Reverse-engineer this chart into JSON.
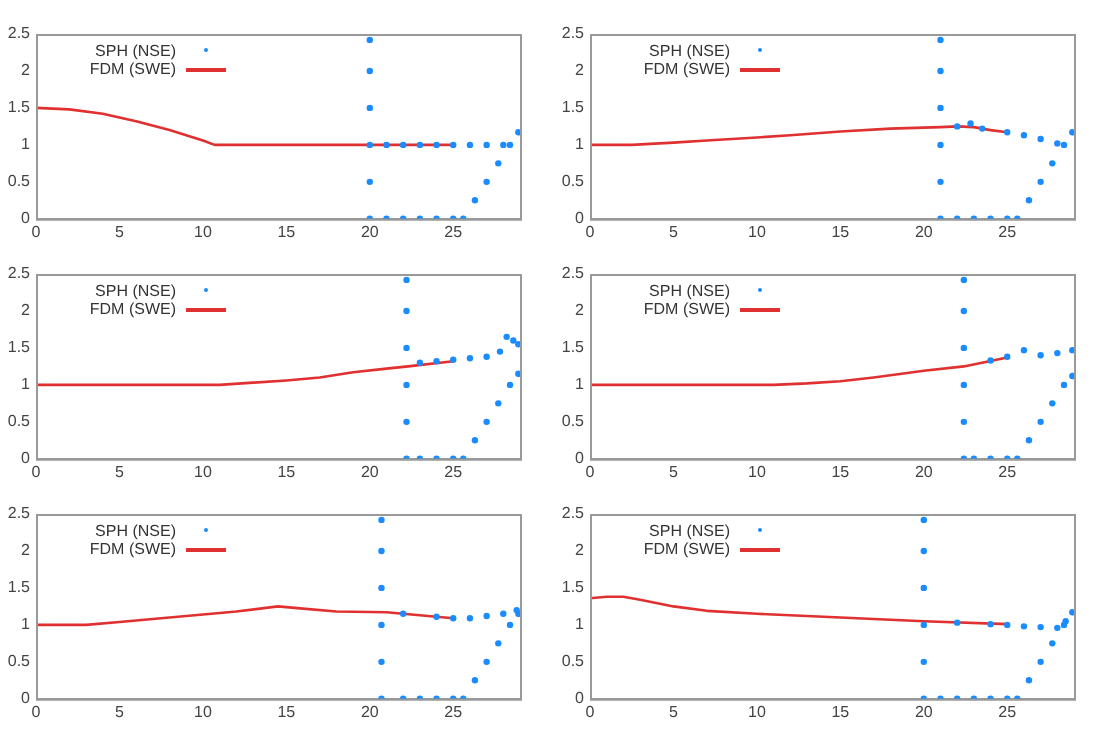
{
  "chart_data": [
    {
      "type": "line",
      "xlim": [
        0,
        29
      ],
      "xticks": [
        0,
        5,
        10,
        15,
        20,
        25
      ],
      "ylim": [
        0,
        2.5
      ],
      "yticks": [
        0,
        0.5,
        1,
        1.5,
        2,
        2.5
      ],
      "grid": false,
      "legend": "top left",
      "series": [
        {
          "name": "SPH (NSE)",
          "type": "scatter",
          "marker": "circle",
          "color": "#1a8cff",
          "x": [
            20,
            20,
            20,
            20,
            20,
            20,
            21,
            22,
            23,
            24,
            25,
            26,
            27,
            28,
            21,
            22,
            23,
            24,
            25,
            25.6,
            26.3,
            27,
            27.7,
            28.4,
            28.9
          ],
          "values": [
            0,
            0.5,
            1,
            1.5,
            2,
            2.42,
            1,
            1,
            1,
            1,
            1,
            1,
            1,
            1,
            0,
            0,
            0,
            0,
            0,
            0,
            0.25,
            0.5,
            0.75,
            1,
            1.17
          ]
        },
        {
          "name": "FDM (SWE)",
          "type": "line",
          "marker": "none",
          "color": "#e03030",
          "x": [
            0,
            2,
            4,
            6,
            8,
            10,
            10.7,
            15,
            20,
            25
          ],
          "values": [
            1.5,
            1.48,
            1.42,
            1.32,
            1.2,
            1.06,
            1,
            1,
            1,
            1
          ]
        }
      ]
    },
    {
      "type": "line",
      "xlim": [
        0,
        29
      ],
      "xticks": [
        0,
        5,
        10,
        15,
        20,
        25
      ],
      "ylim": [
        0,
        2.5
      ],
      "yticks": [
        0,
        0.5,
        1,
        1.5,
        2,
        2.5
      ],
      "grid": false,
      "legend": "top left",
      "series": [
        {
          "name": "SPH (NSE)",
          "type": "scatter",
          "marker": "circle",
          "color": "#1a8cff",
          "x": [
            21,
            21,
            21,
            21,
            21,
            21,
            22,
            22.8,
            23.5,
            25,
            26,
            27,
            28,
            22,
            23,
            24,
            25,
            25.6,
            26.3,
            27,
            27.7,
            28.4,
            28.9
          ],
          "values": [
            0,
            0.5,
            1,
            1.5,
            2,
            2.42,
            1.25,
            1.29,
            1.22,
            1.17,
            1.13,
            1.08,
            1.02,
            0,
            0,
            0,
            0,
            0,
            0.25,
            0.5,
            0.75,
            1,
            1.17
          ]
        },
        {
          "name": "FDM (SWE)",
          "type": "line",
          "marker": "none",
          "color": "#e03030",
          "x": [
            0,
            2.5,
            5,
            7,
            10,
            12,
            15,
            18,
            21,
            22,
            23,
            24,
            25
          ],
          "values": [
            1,
            1,
            1.03,
            1.06,
            1.1,
            1.13,
            1.18,
            1.22,
            1.24,
            1.25,
            1.24,
            1.2,
            1.17
          ]
        }
      ]
    },
    {
      "type": "line",
      "xlim": [
        0,
        29
      ],
      "xticks": [
        0,
        5,
        10,
        15,
        20,
        25
      ],
      "ylim": [
        0,
        2.5
      ],
      "yticks": [
        0,
        0.5,
        1,
        1.5,
        2,
        2.5
      ],
      "grid": false,
      "legend": "top left",
      "series": [
        {
          "name": "SPH (NSE)",
          "type": "scatter",
          "marker": "circle",
          "color": "#1a8cff",
          "x": [
            22.2,
            22.2,
            22.2,
            22.2,
            22.2,
            22.2,
            23,
            24,
            25,
            26,
            27,
            27.8,
            28.2,
            28.6,
            28.9,
            23,
            24,
            25,
            25.6,
            26.3,
            27,
            27.7,
            28.4,
            28.9
          ],
          "values": [
            0,
            0.5,
            1,
            1.5,
            2,
            2.42,
            1.3,
            1.32,
            1.34,
            1.36,
            1.38,
            1.45,
            1.65,
            1.6,
            1.55,
            0,
            0,
            0,
            0,
            0.25,
            0.5,
            0.75,
            1,
            1.15
          ]
        },
        {
          "name": "FDM (SWE)",
          "type": "line",
          "marker": "none",
          "color": "#e03030",
          "x": [
            0,
            5,
            10,
            11,
            13,
            15,
            17,
            19,
            21,
            22.3,
            25
          ],
          "values": [
            1,
            1,
            1,
            1,
            1.03,
            1.06,
            1.1,
            1.17,
            1.22,
            1.25,
            1.32
          ]
        }
      ]
    },
    {
      "type": "line",
      "xlim": [
        0,
        29
      ],
      "xticks": [
        0,
        5,
        10,
        15,
        20,
        25
      ],
      "ylim": [
        0,
        2.5
      ],
      "yticks": [
        0,
        0.5,
        1,
        1.5,
        2,
        2.5
      ],
      "grid": false,
      "legend": "top left",
      "series": [
        {
          "name": "SPH (NSE)",
          "type": "scatter",
          "marker": "circle",
          "color": "#1a8cff",
          "x": [
            22.4,
            22.4,
            22.4,
            22.4,
            22.4,
            22.4,
            24,
            25,
            26,
            27,
            28,
            28.9,
            23,
            24,
            25,
            25.6,
            26.3,
            27,
            27.7,
            28.4,
            28.9
          ],
          "values": [
            0,
            0.5,
            1,
            1.5,
            2,
            2.42,
            1.33,
            1.38,
            1.47,
            1.4,
            1.43,
            1.47,
            0,
            0,
            0,
            0,
            0.25,
            0.5,
            0.75,
            1,
            1.12
          ]
        },
        {
          "name": "FDM (SWE)",
          "type": "line",
          "marker": "none",
          "color": "#e03030",
          "x": [
            0,
            11,
            13,
            15,
            17,
            20,
            22.4,
            25
          ],
          "values": [
            1,
            1,
            1.02,
            1.05,
            1.1,
            1.19,
            1.25,
            1.37
          ]
        }
      ]
    },
    {
      "type": "line",
      "xlim": [
        0,
        29
      ],
      "xticks": [
        0,
        5,
        10,
        15,
        20,
        25
      ],
      "ylim": [
        0,
        2.5
      ],
      "yticks": [
        0,
        0.5,
        1,
        1.5,
        2,
        2.5
      ],
      "grid": false,
      "legend": "top left",
      "series": [
        {
          "name": "SPH (NSE)",
          "type": "scatter",
          "marker": "circle",
          "color": "#1a8cff",
          "x": [
            20.7,
            20.7,
            20.7,
            20.7,
            20.7,
            20.7,
            22,
            24,
            25,
            26,
            27,
            28,
            28.8,
            22,
            23,
            24,
            25,
            25.6,
            26.3,
            27,
            27.7,
            28.4,
            28.9
          ],
          "values": [
            0,
            0.5,
            1,
            1.5,
            2,
            2.42,
            1.15,
            1.11,
            1.09,
            1.09,
            1.12,
            1.15,
            1.2,
            0,
            0,
            0,
            0,
            0,
            0.25,
            0.5,
            0.75,
            1,
            1.15
          ]
        },
        {
          "name": "FDM (SWE)",
          "type": "line",
          "marker": "none",
          "color": "#e03030",
          "x": [
            0,
            3,
            5,
            8,
            11,
            12,
            14.5,
            16,
            18,
            21,
            23,
            25
          ],
          "values": [
            1,
            1,
            1.04,
            1.1,
            1.16,
            1.18,
            1.25,
            1.22,
            1.18,
            1.17,
            1.13,
            1.09
          ]
        }
      ]
    },
    {
      "type": "line",
      "xlim": [
        0,
        29
      ],
      "xticks": [
        0,
        5,
        10,
        15,
        20,
        25
      ],
      "ylim": [
        0,
        2.5
      ],
      "yticks": [
        0,
        0.5,
        1,
        1.5,
        2,
        2.5
      ],
      "grid": false,
      "legend": "top left",
      "series": [
        {
          "name": "SPH (NSE)",
          "type": "scatter",
          "marker": "circle",
          "color": "#1a8cff",
          "x": [
            20,
            20,
            20,
            20,
            20,
            20,
            22,
            24,
            25,
            26,
            27,
            28,
            28.5,
            21,
            22,
            23,
            24,
            25,
            25.6,
            26.3,
            27,
            27.7,
            28.4,
            28.9
          ],
          "values": [
            0,
            0.5,
            1,
            1.5,
            2,
            2.42,
            1.03,
            1.01,
            1,
            0.98,
            0.97,
            0.96,
            1.05,
            0,
            0,
            0,
            0,
            0,
            0,
            0.25,
            0.5,
            0.75,
            1,
            1.17
          ]
        },
        {
          "name": "FDM (SWE)",
          "type": "line",
          "marker": "none",
          "color": "#e03030",
          "x": [
            0,
            1,
            2,
            3,
            5,
            7,
            10,
            15,
            20,
            25
          ],
          "values": [
            1.36,
            1.38,
            1.38,
            1.34,
            1.25,
            1.19,
            1.15,
            1.1,
            1.05,
            1.01
          ]
        }
      ]
    }
  ]
}
